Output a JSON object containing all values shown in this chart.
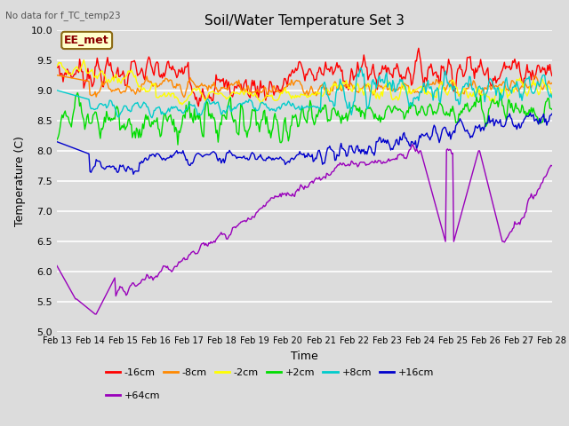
{
  "title": "Soil/Water Temperature Set 3",
  "xlabel": "Time",
  "ylabel": "Temperature (C)",
  "ylim": [
    5.0,
    10.0
  ],
  "yticks": [
    5.0,
    5.5,
    6.0,
    6.5,
    7.0,
    7.5,
    8.0,
    8.5,
    9.0,
    9.5,
    10.0
  ],
  "x_labels": [
    "Feb 13",
    "Feb 14",
    "Feb 15",
    "Feb 16",
    "Feb 17",
    "Feb 18",
    "Feb 19",
    "Feb 20",
    "Feb 21",
    "Feb 22",
    "Feb 23",
    "Feb 24",
    "Feb 25",
    "Feb 26",
    "Feb 27",
    "Feb 28"
  ],
  "no_data_text": "No data for f_TC_temp23",
  "annotation_text": "EE_met",
  "bg_color": "#dcdcdc",
  "series": [
    {
      "label": "-16cm",
      "color": "#ff0000"
    },
    {
      "label": "-8cm",
      "color": "#ff8800"
    },
    {
      "label": "-2cm",
      "color": "#ffff00"
    },
    {
      "label": "+2cm",
      "color": "#00dd00"
    },
    {
      "label": "+8cm",
      "color": "#00cccc"
    },
    {
      "label": "+16cm",
      "color": "#0000cc"
    },
    {
      "label": "+64cm",
      "color": "#9900bb"
    }
  ],
  "n_points": 480,
  "seed": 7
}
